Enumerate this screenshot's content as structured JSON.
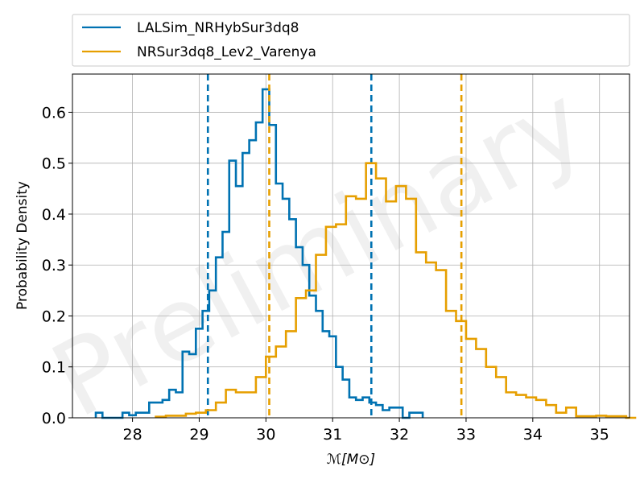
{
  "chart_data": {
    "type": "step-histogram",
    "watermark": "Preliminary",
    "xlabel": "ℳ[M⊙]",
    "ylabel": "Probability Density",
    "xlim": [
      27.1,
      35.45
    ],
    "ylim": [
      0,
      0.675
    ],
    "xticks": [
      28,
      29,
      30,
      31,
      32,
      33,
      34,
      35
    ],
    "yticks": [
      0.0,
      0.1,
      0.2,
      0.3,
      0.4,
      0.5,
      0.6
    ],
    "ytick_labels": [
      "0.0",
      "0.1",
      "0.2",
      "0.3",
      "0.4",
      "0.5",
      "0.6"
    ],
    "grid": true,
    "legend_location": "top, above plot",
    "series": [
      {
        "name": "LALSim_NRHybSur3dq8",
        "color": "#0072b2",
        "bin_width": 0.1,
        "edges_start": 27.45,
        "densities": [
          0.01,
          0.0,
          0.0,
          0.0,
          0.01,
          0.005,
          0.01,
          0.01,
          0.03,
          0.03,
          0.035,
          0.055,
          0.05,
          0.13,
          0.125,
          0.175,
          0.21,
          0.25,
          0.315,
          0.365,
          0.505,
          0.455,
          0.52,
          0.545,
          0.58,
          0.645,
          0.575,
          0.46,
          0.43,
          0.39,
          0.335,
          0.3,
          0.24,
          0.21,
          0.17,
          0.16,
          0.1,
          0.075,
          0.04,
          0.035,
          0.04,
          0.03,
          0.025,
          0.015,
          0.02,
          0.02,
          0.0,
          0.01,
          0.01
        ],
        "ci90": [
          29.13,
          31.58
        ]
      },
      {
        "name": "NRSur3dq8_Lev2_Varenya",
        "color": "#e69f00",
        "bin_width": 0.15,
        "edges_start": 28.35,
        "densities": [
          0.002,
          0.004,
          0.004,
          0.008,
          0.01,
          0.015,
          0.03,
          0.055,
          0.05,
          0.05,
          0.08,
          0.12,
          0.14,
          0.17,
          0.235,
          0.25,
          0.32,
          0.375,
          0.38,
          0.435,
          0.43,
          0.5,
          0.47,
          0.425,
          0.455,
          0.43,
          0.325,
          0.305,
          0.29,
          0.21,
          0.19,
          0.155,
          0.135,
          0.1,
          0.08,
          0.05,
          0.045,
          0.04,
          0.035,
          0.025,
          0.01,
          0.02,
          0.003,
          0.003,
          0.004,
          0.003,
          0.003,
          0.0
        ],
        "ci90": [
          30.05,
          32.93
        ]
      }
    ]
  }
}
